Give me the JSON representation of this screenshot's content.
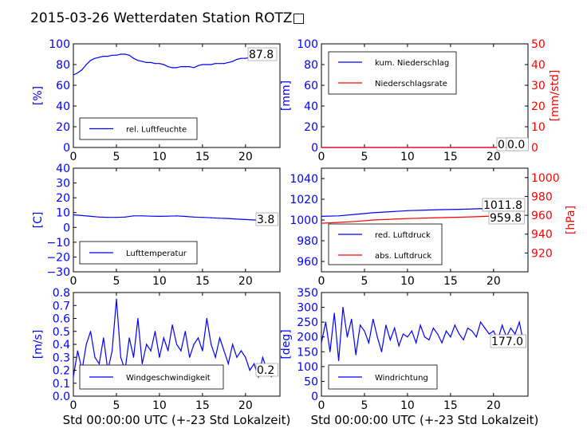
{
  "title": "2015-03-26 Wetterdaten Station ROTZ□",
  "colors": {
    "left_axis": "#0000ff",
    "right_axis": "#ff0000",
    "series_blue": "#0000ff",
    "series_red": "#ff0000"
  },
  "xlabel": "Std 00:00:00 UTC (+-23 Std Lokalzeit)",
  "x_ticks": [
    "0",
    "5",
    "10",
    "15",
    "20"
  ],
  "chart_data": [
    {
      "type": "line",
      "id": "humidity",
      "ylabel": "[%]",
      "ylim": [
        0,
        100
      ],
      "xlim": [
        0,
        24
      ],
      "y_ticks": [
        "0",
        "20",
        "40",
        "60",
        "80",
        "100"
      ],
      "legend": [
        "rel. Luftfeuchte"
      ],
      "legend_position": "bottom-left",
      "annotation": "87.8",
      "series": [
        {
          "name": "rel. Luftfeuchte",
          "x": [
            0,
            0.5,
            1,
            1.5,
            2,
            2.5,
            3,
            3.5,
            4,
            4.5,
            5,
            5.5,
            6,
            6.5,
            7,
            7.5,
            8,
            8.5,
            9,
            9.5,
            10,
            10.5,
            11,
            11.5,
            12,
            12.5,
            13,
            13.5,
            14,
            14.5,
            15,
            15.5,
            16,
            16.5,
            17,
            17.5,
            18,
            18.5,
            19,
            19.5,
            20,
            20.5,
            21,
            21.5,
            22,
            22.5,
            23,
            23.5
          ],
          "values": [
            70,
            72,
            75,
            80,
            84,
            86,
            87,
            88,
            88,
            89,
            89,
            90,
            90,
            89,
            86,
            84,
            83,
            82,
            82,
            81,
            81,
            80,
            78,
            77,
            77,
            78,
            78,
            78,
            77,
            79,
            80,
            80,
            80,
            81,
            81,
            81,
            82,
            83,
            85,
            86,
            86,
            87,
            88,
            88,
            88,
            88,
            88,
            88
          ]
        }
      ]
    },
    {
      "type": "line",
      "id": "precipitation",
      "ylabel": "[mm]",
      "ylabel_right": "[mm/std]",
      "ylim": [
        0,
        100
      ],
      "ylim_right": [
        0,
        50
      ],
      "xlim": [
        0,
        24
      ],
      "y_ticks": [
        "0",
        "20",
        "40",
        "60",
        "80",
        "100"
      ],
      "y_ticks_right": [
        "0",
        "10",
        "20",
        "30",
        "40",
        "50"
      ],
      "legend": [
        "kum. Niederschlag",
        "Niederschlagsrate"
      ],
      "legend_position": "top-left",
      "annotations": [
        "0.0",
        "0.0"
      ],
      "series": [
        {
          "name": "kum. Niederschlag",
          "axis": "left",
          "x": [
            0,
            24
          ],
          "values": [
            0,
            0
          ]
        },
        {
          "name": "Niederschlagsrate",
          "axis": "right",
          "x": [
            0,
            24
          ],
          "values": [
            0,
            0
          ]
        }
      ]
    },
    {
      "type": "line",
      "id": "temperature",
      "ylabel": "[C]",
      "ylim": [
        -30,
        40
      ],
      "xlim": [
        0,
        24
      ],
      "y_ticks": [
        "−30",
        "−20",
        "−10",
        "0",
        "10",
        "20",
        "30",
        "40"
      ],
      "legend": [
        "Lufttemperatur"
      ],
      "legend_position": "bottom-left",
      "annotation": "3.8",
      "series": [
        {
          "name": "Lufttemperatur",
          "x": [
            0,
            1,
            2,
            3,
            4,
            5,
            6,
            7,
            8,
            9,
            10,
            11,
            12,
            13,
            14,
            15,
            16,
            17,
            18,
            19,
            20,
            21,
            22,
            23,
            23.5
          ],
          "values": [
            8.5,
            8,
            7.5,
            7,
            6.8,
            6.8,
            7,
            7.8,
            7.8,
            7.6,
            7.5,
            7.6,
            7.8,
            7.4,
            7,
            6.8,
            6.5,
            6.2,
            6,
            5.6,
            5.3,
            5,
            4.5,
            4,
            3.8
          ]
        }
      ]
    },
    {
      "type": "line",
      "id": "pressure",
      "ylabel_right": "[hPa]",
      "ylim": [
        950,
        1050
      ],
      "ylim_right": [
        900,
        1010
      ],
      "xlim": [
        0,
        24
      ],
      "y_ticks": [
        "960",
        "980",
        "1000",
        "1020",
        "1040"
      ],
      "y_ticks_right": [
        "920",
        "940",
        "960",
        "980",
        "1000"
      ],
      "legend": [
        "red. Luftdruck",
        "abs. Luftdruck"
      ],
      "legend_position": "bottom-left",
      "annotations": [
        "1011.8",
        "959.8"
      ],
      "series": [
        {
          "name": "red. Luftdruck",
          "axis": "left",
          "x": [
            0,
            2,
            4,
            6,
            8,
            10,
            12,
            14,
            16,
            18,
            20,
            22,
            23.5
          ],
          "values": [
            1003.5,
            1004,
            1005.5,
            1007,
            1008,
            1009,
            1009.5,
            1010,
            1010.3,
            1010.8,
            1011.5,
            1011.8,
            1011.8
          ]
        },
        {
          "name": "abs. Luftdruck",
          "axis": "right",
          "x": [
            0,
            2,
            4,
            6,
            8,
            10,
            12,
            14,
            16,
            18,
            20,
            22,
            23.5
          ],
          "values": [
            951.5,
            952.5,
            953.5,
            955,
            955.8,
            956.5,
            957,
            957.5,
            958,
            958.5,
            959.2,
            959.7,
            959.8
          ]
        }
      ]
    },
    {
      "type": "line",
      "id": "windspeed",
      "ylabel": "[m/s]",
      "ylim": [
        0,
        0.8
      ],
      "xlim": [
        0,
        24
      ],
      "y_ticks": [
        "0.0",
        "0.1",
        "0.2",
        "0.3",
        "0.4",
        "0.5",
        "0.6",
        "0.7",
        "0.8"
      ],
      "legend": [
        "Windgeschwindigkeit"
      ],
      "legend_position": "bottom-left",
      "annotation": "0.2",
      "series": [
        {
          "name": "Windgeschwindigkeit",
          "x": [
            0,
            0.5,
            1,
            1.5,
            2,
            2.5,
            3,
            3.5,
            4,
            4.5,
            5,
            5.5,
            6,
            6.5,
            7,
            7.5,
            8,
            8.5,
            9,
            9.5,
            10,
            10.5,
            11,
            11.5,
            12,
            12.5,
            13,
            13.5,
            14,
            14.5,
            15,
            15.5,
            16,
            16.5,
            17,
            17.5,
            18,
            18.5,
            19,
            19.5,
            20,
            20.5,
            21,
            21.5,
            22,
            22.5,
            23,
            23.5
          ],
          "values": [
            0.15,
            0.35,
            0.2,
            0.4,
            0.5,
            0.3,
            0.25,
            0.45,
            0.2,
            0.35,
            0.75,
            0.3,
            0.2,
            0.45,
            0.3,
            0.6,
            0.25,
            0.4,
            0.35,
            0.5,
            0.3,
            0.45,
            0.35,
            0.55,
            0.4,
            0.35,
            0.5,
            0.3,
            0.4,
            0.45,
            0.35,
            0.6,
            0.4,
            0.3,
            0.45,
            0.35,
            0.25,
            0.4,
            0.3,
            0.35,
            0.3,
            0.2,
            0.25,
            0.15,
            0.3,
            0.2,
            0.15,
            0.2
          ]
        }
      ]
    },
    {
      "type": "line",
      "id": "winddirection",
      "ylabel": "[deg]",
      "ylim": [
        0,
        350
      ],
      "xlim": [
        0,
        24
      ],
      "y_ticks": [
        "0",
        "50",
        "100",
        "150",
        "200",
        "250",
        "300",
        "350"
      ],
      "legend": [
        "Windrichtung"
      ],
      "legend_position": "bottom-left",
      "annotation": "177.0",
      "series": [
        {
          "name": "Windrichtung",
          "x": [
            0,
            0.5,
            1,
            1.5,
            2,
            2.5,
            3,
            3.5,
            4,
            4.5,
            5,
            5.5,
            6,
            6.5,
            7,
            7.5,
            8,
            8.5,
            9,
            9.5,
            10,
            10.5,
            11,
            11.5,
            12,
            12.5,
            13,
            13.5,
            14,
            14.5,
            15,
            15.5,
            16,
            16.5,
            17,
            17.5,
            18,
            18.5,
            19,
            19.5,
            20,
            20.5,
            21,
            21.5,
            22,
            22.5,
            23,
            23.5
          ],
          "values": [
            180,
            250,
            150,
            280,
            120,
            300,
            200,
            260,
            140,
            240,
            220,
            180,
            260,
            200,
            150,
            240,
            190,
            230,
            170,
            210,
            200,
            220,
            180,
            240,
            200,
            190,
            230,
            210,
            180,
            220,
            200,
            240,
            210,
            190,
            230,
            220,
            200,
            250,
            230,
            210,
            220,
            190,
            240,
            200,
            230,
            210,
            250,
            177
          ]
        }
      ]
    }
  ]
}
